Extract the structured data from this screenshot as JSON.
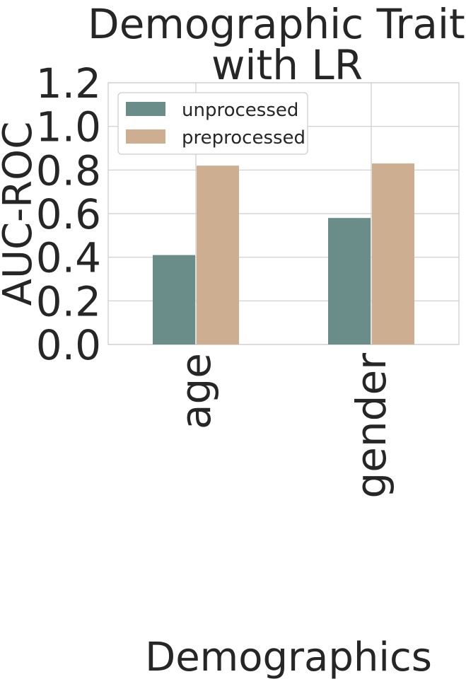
{
  "chart_data": {
    "type": "bar",
    "title_lines": [
      "Demographic Traits",
      "with LR"
    ],
    "xlabel": "Demographics",
    "ylabel": "AUC-ROC",
    "categories": [
      "age",
      "gender"
    ],
    "series": [
      {
        "name": "unprocessed",
        "values": [
          0.41,
          0.58
        ],
        "color": "#6a8d8a"
      },
      {
        "name": "preprocessed",
        "values": [
          0.82,
          0.83
        ],
        "color": "#cdae90"
      }
    ],
    "ylim": [
      0,
      1.2
    ],
    "yticks": [
      "0.0",
      "0.2",
      "0.4",
      "0.6",
      "0.8",
      "1.0",
      "1.2"
    ],
    "grid": true,
    "legend_position": "top-left"
  }
}
